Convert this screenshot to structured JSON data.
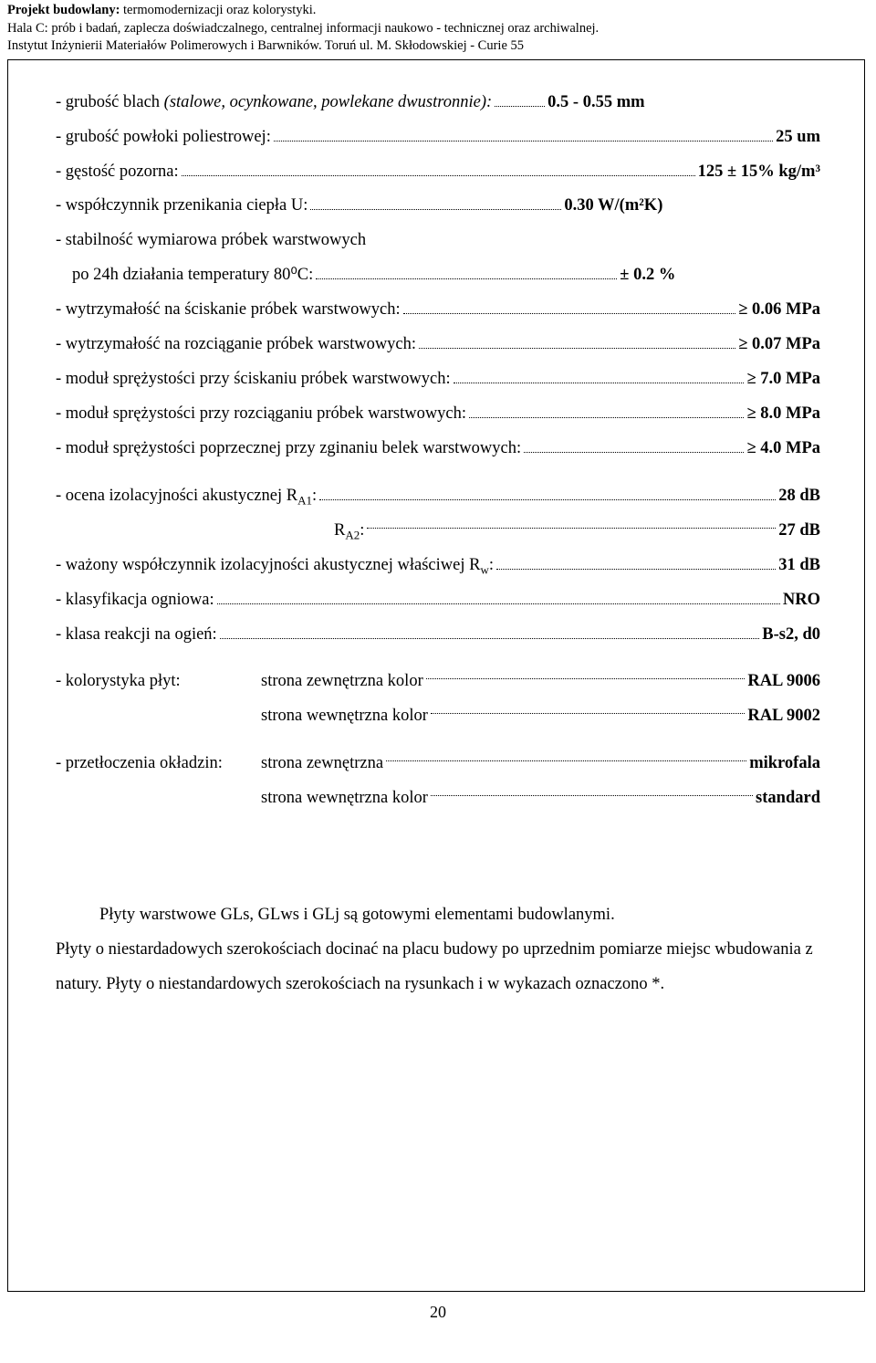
{
  "header": {
    "line1_bold": "Projekt budowlany:",
    "line1_rest": "  termomodernizacji oraz kolorystyki.",
    "line2": "Hala C: prób i badań, zaplecza doświadczalnego, centralnej informacji naukowo - technicznej oraz archiwalnej.",
    "line3": "Instytut Inżynierii Materiałów Polimerowych i Barwników. Toruń ul. M. Skłodowskiej - Curie 55"
  },
  "specs": {
    "s1_label": "- grubość blach ",
    "s1_italic": "(stalowe, ocynkowane, powlekane dwustronnie):",
    "s1_value": "0.5 - 0.55 mm",
    "s2_label": "- grubość powłoki poliestrowej:",
    "s2_value": "25 um",
    "s3_label": "- gęstość pozorna:",
    "s3_value": "125 ± 15% kg/m³",
    "s4_label": "- współczynnik przenikania ciepła U:",
    "s4_value": "0.30 W/(m²K)",
    "s5a": "- stabilność wymiarowa próbek warstwowych",
    "s5b_label": "po 24h działania temperatury 80⁰C:",
    "s5b_value": "± 0.2 %",
    "s6_label": "- wytrzymałość na ściskanie próbek warstwowych:",
    "s6_value": "≥ 0.06 MPa",
    "s7_label": "- wytrzymałość na rozciąganie próbek warstwowych:",
    "s7_value": "≥ 0.07 MPa",
    "s8_label": "- moduł sprężystości przy ściskaniu próbek warstwowych:",
    "s8_value": "≥ 7.0  MPa",
    "s9_label": "- moduł sprężystości przy rozciąganiu próbek warstwowych:",
    "s9_value": "≥ 8.0  MPa",
    "s10_label": "- moduł sprężystości poprzecznej przy zginaniu belek warstwowych:",
    "s10_value": "≥ 4.0  MPa",
    "s11_label_pre": "- ocena izolacyjności akustycznej  R",
    "s11_sub": "A1",
    "s11_label_post": ":",
    "s11_value": "28 dB",
    "s12_pre": "R",
    "s12_sub": "A2",
    "s12_post": ":",
    "s12_value": "27 dB",
    "s13_label_pre": "- ważony współczynnik izolacyjności akustycznej  właściwej R",
    "s13_sub": "w",
    "s13_post": ":",
    "s13_value": "31 dB",
    "s14_label": "- klasyfikacja ogniowa:",
    "s14_value": "NRO",
    "s15_label": "- klasa reakcji na ogień:",
    "s15_value": "B-s2, d0",
    "s16_left": "- kolorystyka płyt:",
    "s16_mid": "strona zewnętrzna kolor",
    "s16_value": "RAL 9006",
    "s17_mid": "strona wewnętrzna kolor",
    "s17_value": "RAL 9002",
    "s18_left": "- przetłoczenia okładzin:",
    "s18_mid": "strona zewnętrzna",
    "s18_value": "mikrofala",
    "s19_mid": "strona wewnętrzna kolor",
    "s19_value": "standard"
  },
  "paragraph": {
    "p1": "Płyty warstwowe GLs, GLws i GLj są gotowymi elementami budowlanymi.",
    "p2": "Płyty o niestardadowych szerokościach docinać na placu budowy po uprzednim pomiarze miejsc wbudowania z natury. Płyty o niestandardowych szerokościach na rysunkach i w wykazach oznaczono *."
  },
  "page_number": "20"
}
